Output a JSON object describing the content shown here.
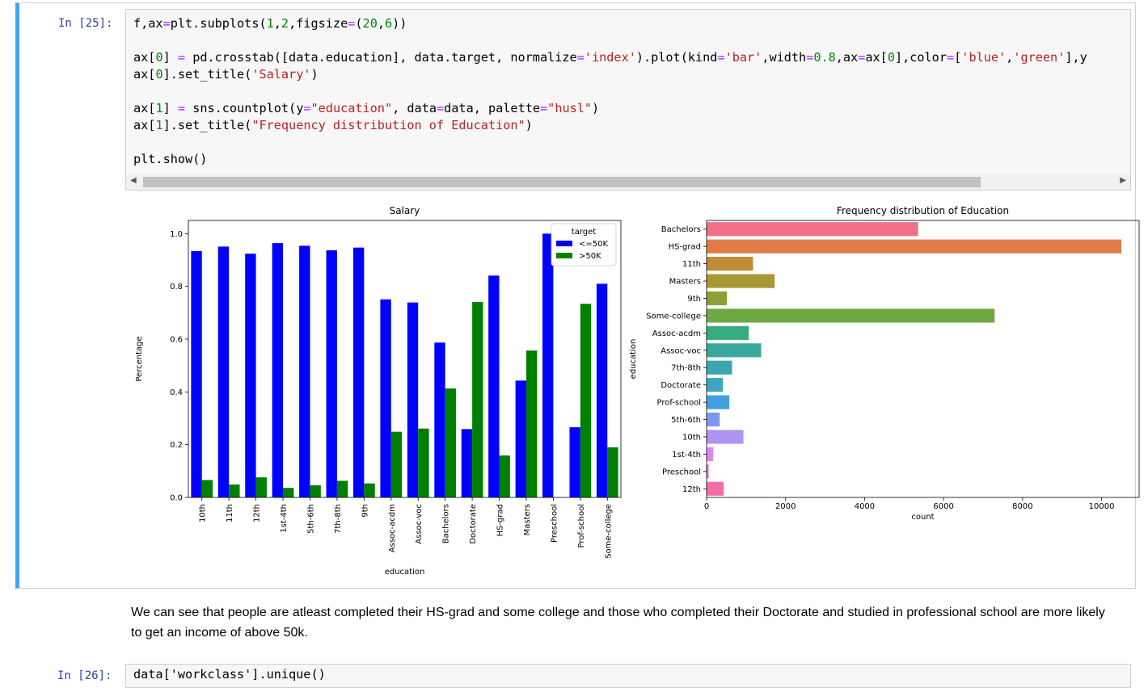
{
  "cell": {
    "prompt": "In [25]:",
    "code_tokens": [
      [
        [
          "f,ax",
          ""
        ],
        [
          "=",
          "k"
        ],
        [
          "plt.subplots(",
          ""
        ],
        [
          "1",
          "n"
        ],
        [
          ",",
          ""
        ],
        [
          "2",
          "n"
        ],
        [
          ",figsize",
          ""
        ],
        [
          "=",
          "k"
        ],
        [
          "(",
          ""
        ],
        [
          "20",
          "n"
        ],
        [
          ",",
          ""
        ],
        [
          "6",
          "n"
        ],
        [
          "))",
          ""
        ]
      ],
      [],
      [
        [
          "ax[",
          ""
        ],
        [
          "0",
          "n"
        ],
        [
          "] ",
          ""
        ],
        [
          "=",
          "k"
        ],
        [
          " pd.crosstab([data.education], data.target, normalize",
          ""
        ],
        [
          "=",
          "k"
        ],
        [
          "'index'",
          "s"
        ],
        [
          ").plot(kind",
          ""
        ],
        [
          "=",
          "k"
        ],
        [
          "'bar'",
          "s"
        ],
        [
          ",width",
          ""
        ],
        [
          "=",
          "k"
        ],
        [
          "0.8",
          "n"
        ],
        [
          ",ax",
          ""
        ],
        [
          "=",
          "k"
        ],
        [
          "ax[",
          ""
        ],
        [
          "0",
          "n"
        ],
        [
          "],color",
          ""
        ],
        [
          "=",
          "k"
        ],
        [
          "[",
          ""
        ],
        [
          "'blue'",
          "s"
        ],
        [
          ",",
          ""
        ],
        [
          "'green'",
          "s"
        ],
        [
          "],y",
          ""
        ]
      ],
      [
        [
          "ax[",
          ""
        ],
        [
          "0",
          "n"
        ],
        [
          "].set_title(",
          ""
        ],
        [
          "'Salary'",
          "s"
        ],
        [
          ")",
          ""
        ]
      ],
      [],
      [
        [
          "ax[",
          ""
        ],
        [
          "1",
          "n"
        ],
        [
          "] ",
          ""
        ],
        [
          "=",
          "k"
        ],
        [
          " sns.countplot(y",
          ""
        ],
        [
          "=",
          "k"
        ],
        [
          "\"education\"",
          "s"
        ],
        [
          ", data",
          ""
        ],
        [
          "=",
          "k"
        ],
        [
          "data, palette",
          ""
        ],
        [
          "=",
          "k"
        ],
        [
          "\"husl\"",
          "s"
        ],
        [
          ")",
          ""
        ]
      ],
      [
        [
          "ax[",
          ""
        ],
        [
          "1",
          "n"
        ],
        [
          "].set_title(",
          ""
        ],
        [
          "\"Frequency distribution of Education\"",
          "s"
        ],
        [
          ")",
          ""
        ]
      ],
      [],
      [
        [
          "plt.show()",
          ""
        ]
      ]
    ]
  },
  "chart_data": [
    {
      "type": "bar",
      "title": "Salary",
      "xlabel": "education",
      "ylabel": "Percentage",
      "ylim": [
        0,
        1.05
      ],
      "yticks": [
        "0.0",
        "0.2",
        "0.4",
        "0.6",
        "0.8",
        "1.0"
      ],
      "legend": {
        "title": "target",
        "position": "top-right"
      },
      "categories": [
        "10th",
        "11th",
        "12th",
        "1st-4th",
        "5th-6th",
        "7th-8th",
        "9th",
        "Assoc-acdm",
        "Assoc-voc",
        "Bachelors",
        "Doctorate",
        "HS-grad",
        "Masters",
        "Preschool",
        "Prof-school",
        "Some-college"
      ],
      "series": [
        {
          "name": "<=50K",
          "color": "#0000ff",
          "values": [
            0.934,
            0.951,
            0.924,
            0.964,
            0.954,
            0.937,
            0.947,
            0.751,
            0.739,
            0.587,
            0.259,
            0.841,
            0.443,
            1.0,
            0.266,
            0.81
          ]
        },
        {
          "name": ">50K",
          "color": "#008000",
          "values": [
            0.066,
            0.049,
            0.076,
            0.036,
            0.046,
            0.063,
            0.053,
            0.249,
            0.261,
            0.413,
            0.741,
            0.159,
            0.557,
            0.0,
            0.734,
            0.19
          ]
        }
      ]
    },
    {
      "type": "bar",
      "orientation": "horizontal",
      "title": "Frequency distribution of Education",
      "xlabel": "count",
      "ylabel": "education",
      "xlim": [
        0,
        10950
      ],
      "xticks": [
        "0",
        "2000",
        "4000",
        "6000",
        "8000",
        "10000"
      ],
      "categories": [
        "Bachelors",
        "HS-grad",
        "11th",
        "Masters",
        "9th",
        "Some-college",
        "Assoc-acdm",
        "Assoc-voc",
        "7th-8th",
        "Doctorate",
        "Prof-school",
        "5th-6th",
        "10th",
        "1st-4th",
        "Preschool",
        "12th"
      ],
      "values": [
        5355,
        10501,
        1175,
        1723,
        514,
        7291,
        1067,
        1382,
        646,
        413,
        576,
        333,
        933,
        168,
        51,
        433
      ],
      "colors": [
        "#f37088",
        "#e07b48",
        "#bf8b34",
        "#a89833",
        "#8da133",
        "#6da845",
        "#36ac81",
        "#38a99c",
        "#3aa7b0",
        "#3da5c5",
        "#42a0e0",
        "#7b99f4",
        "#b093f2",
        "#e085f0",
        "#f16ac8",
        "#f26ea8"
      ]
    }
  ],
  "markdown": {
    "text": "We can see that people are atleast completed their HS-grad and some college and those who completed their Doctorate and studied in professional school are more likely to get an income of above 50k."
  },
  "next_cell": {
    "prompt": "In [26]:",
    "code": "data['workclass'].unique()"
  }
}
